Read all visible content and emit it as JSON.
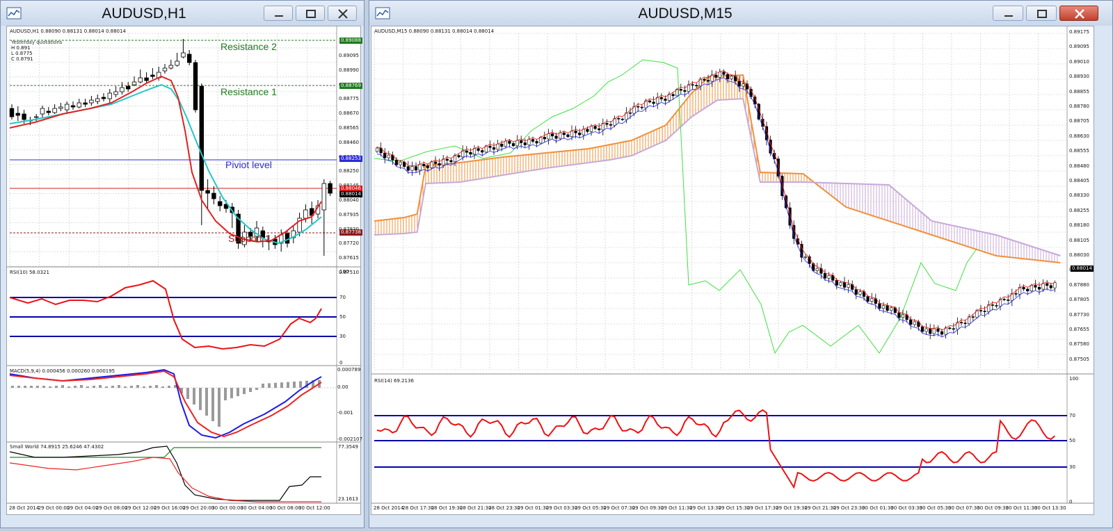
{
  "left_window": {
    "title": "AUDUSD,H1",
    "chart_header": "AUDUSD,H1  0.88090 0.88131 0.88014 0.88014",
    "yesterday_box": {
      "title": "Yesterday quotations",
      "high": "H 0.891",
      "low": "L 0.8775",
      "close": "C 0.8791"
    },
    "price_axis": [
      "0.89095",
      "0.88990",
      "0.88885",
      "0.88775",
      "0.88670",
      "0.88565",
      "0.88460",
      "0.88355",
      "0.88250",
      "0.88145",
      "0.88040",
      "0.87935",
      "0.87830",
      "0.87720",
      "0.87615",
      "0.87510"
    ],
    "tags": {
      "resistance2": "0.89088",
      "resistance1": "0.88769",
      "pivot": "0.88253",
      "bid": "0.88046",
      "current": "0.88014",
      "support": "0.87738"
    },
    "annotations": {
      "resistance2": "Resistance 2",
      "resistance1": "Resistance 1",
      "pivot": "Piviot level",
      "support": "Support 1"
    },
    "rsi": {
      "header": "RSI(10) 58.0321",
      "axis": [
        "100",
        "70",
        "50",
        "30",
        "0"
      ]
    },
    "macd": {
      "header": "MACD(5,9,4) 0.000456 0.000260 0.000195",
      "axis": [
        "0.000789",
        "0.00",
        "-0.001",
        "-0.002107"
      ]
    },
    "small_world": {
      "header": "Small World 74.8915 25.6246 47.4302",
      "axis": [
        "77.3549",
        "23.1613"
      ]
    },
    "time_axis": [
      "28 Oct 2014",
      "29 Oct 00:00",
      "29 Oct 04:00",
      "29 Oct 08:00",
      "29 Oct 12:00",
      "29 Oct 16:00",
      "29 Oct 20:00",
      "30 Oct 00:00",
      "30 Oct 04:00",
      "30 Oct 08:00",
      "30 Oct 12:00"
    ]
  },
  "right_window": {
    "title": "AUDUSD,M15",
    "chart_header": "AUDUSD,M15  0.88090 0.88131 0.88014 0.88014",
    "price_axis": [
      "0.89175",
      "0.89095",
      "0.89010",
      "0.88930",
      "0.88855",
      "0.88780",
      "0.88705",
      "0.88630",
      "0.88555",
      "0.88480",
      "0.88405",
      "0.88330",
      "0.88255",
      "0.88180",
      "0.88105",
      "0.88030",
      "0.87955",
      "0.87880",
      "0.87805",
      "0.87730",
      "0.87655",
      "0.87580",
      "0.87505"
    ],
    "current_tag": "0.88014",
    "rsi": {
      "header": "RSI(14) 69.2136",
      "axis": [
        "100",
        "70",
        "50",
        "30",
        "0"
      ]
    },
    "time_axis": [
      "28 Oct 2014",
      "28 Oct 17:30",
      "28 Oct 19:30",
      "28 Oct 21:30",
      "28 Oct 23:30",
      "29 Oct 01:30",
      "29 Oct 03:30",
      "29 Oct 05:30",
      "29 Oct 07:30",
      "29 Oct 09:30",
      "29 Oct 11:30",
      "29 Oct 13:30",
      "29 Oct 15:30",
      "29 Oct 17:30",
      "29 Oct 19:30",
      "29 Oct 21:30",
      "29 Oct 23:30",
      "30 Oct 01:30",
      "30 Oct 03:30",
      "30 Oct 05:30",
      "30 Oct 07:30",
      "30 Oct 09:30",
      "30 Oct 11:30",
      "30 Oct 13:30"
    ]
  },
  "colors": {
    "pivot": "#2b2bd6",
    "resistance": "#1f7a1f",
    "support": "#8b1a1a",
    "rsi_line": "#ee1111",
    "level_line": "#0000aa",
    "cloud_orange": "#f0903a",
    "cloud_violet": "#c8a8d8"
  }
}
